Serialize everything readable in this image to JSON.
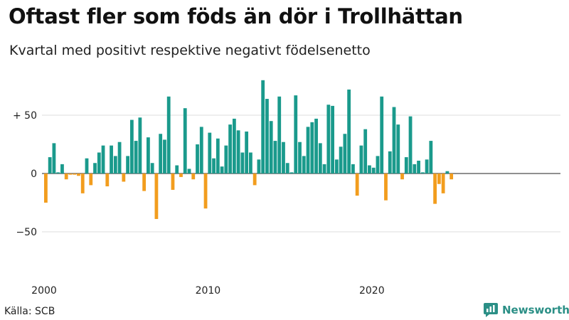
{
  "header": {
    "title": "Oftast fler som föds än dör i Trollhättan",
    "subtitle": "Kvartal med positivt respektive negativt födelsenetto"
  },
  "footer": {
    "source": "Källa: SCB",
    "brand": "Newsworthy"
  },
  "colors": {
    "positive": "#1a9a8c",
    "negative": "#f29d1e",
    "grid": "#dddddd",
    "brand": "#2b8f86"
  },
  "chart_data": {
    "type": "bar",
    "x_start_year": 2000,
    "periods_per_year": 4,
    "values": [
      -25,
      14,
      26,
      1,
      8,
      -5,
      -1,
      -1,
      -2,
      -17,
      13,
      -10,
      9,
      18,
      24,
      -11,
      24,
      15,
      27,
      -7,
      15,
      46,
      28,
      48,
      -15,
      31,
      9,
      -39,
      34,
      29,
      66,
      -14,
      7,
      -3,
      56,
      4,
      -5,
      25,
      40,
      -30,
      35,
      13,
      30,
      6,
      24,
      42,
      47,
      37,
      18,
      36,
      18,
      -10,
      12,
      80,
      64,
      45,
      28,
      66,
      27,
      9,
      1,
      67,
      27,
      15,
      40,
      44,
      47,
      26,
      8,
      59,
      58,
      12,
      23,
      34,
      72,
      8,
      -19,
      24,
      38,
      7,
      5,
      15,
      66,
      -23,
      19,
      57,
      42,
      -5,
      14,
      49,
      8,
      11,
      1,
      12,
      28,
      -26,
      -9,
      -17,
      2,
      -5
    ],
    "y_ticks": [
      50,
      0,
      -50
    ],
    "y_tick_labels": [
      "+ 50",
      "0",
      "−50"
    ],
    "x_tick_years": [
      2000,
      2010,
      2020
    ],
    "x_tick_labels": [
      "2000",
      "2010",
      "2020"
    ],
    "ylim": [
      -90,
      90
    ],
    "grid": true
  }
}
